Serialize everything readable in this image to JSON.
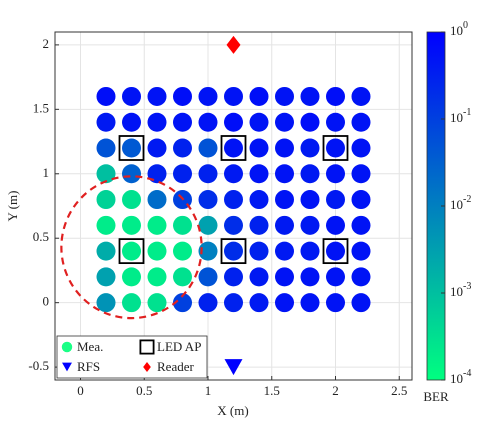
{
  "chart_data": {
    "type": "scatter",
    "xlabel": "X (m)",
    "ylabel": "Y (m)",
    "xlim": [
      -0.2,
      2.6
    ],
    "ylim": [
      -0.6,
      2.1
    ],
    "xticks": [
      0,
      0.5,
      1,
      1.5,
      2,
      2.5
    ],
    "yticks": [
      -0.5,
      0,
      0.5,
      1,
      1.5,
      2
    ],
    "grid": true,
    "colorbar": {
      "label": "BER",
      "log": true,
      "lim": [
        0.0001,
        1
      ],
      "colormap": [
        "#00ff80",
        "#0000ff"
      ],
      "ticks": [
        {
          "value": 1,
          "label": "10^0"
        },
        {
          "value": 0.1,
          "label": "10^-1"
        },
        {
          "value": 0.01,
          "label": "10^-2"
        },
        {
          "value": 0.001,
          "label": "10^-3"
        },
        {
          "value": 0.0001,
          "label": "10^-4"
        }
      ]
    },
    "legend": "lower left",
    "series": [
      {
        "name": "Mea.",
        "marker": "circle",
        "color": "#1aff86",
        "x": [
          0.2,
          0.4,
          0.6,
          0.8,
          1,
          1.2,
          1.4,
          1.6,
          1.8,
          2,
          2.2,
          0.2,
          0.4,
          0.6,
          0.8,
          1,
          1.2,
          1.4,
          1.6,
          1.8,
          2,
          2.2,
          0.2,
          0.4,
          0.6,
          0.8,
          1,
          1.2,
          1.4,
          1.6,
          1.8,
          2,
          2.2,
          0.2,
          0.4,
          0.6,
          0.8,
          1,
          1.2,
          1.4,
          1.6,
          1.8,
          2,
          2.2,
          0.2,
          0.4,
          0.6,
          0.8,
          1,
          1.2,
          1.4,
          1.6,
          1.8,
          2,
          2.2,
          0.2,
          0.4,
          0.6,
          0.8,
          1,
          1.2,
          1.4,
          1.6,
          1.8,
          2,
          2.2,
          0.2,
          0.4,
          0.6,
          0.8,
          1,
          1.2,
          1.4,
          1.6,
          1.8,
          2,
          2.2,
          0.2,
          0.4,
          0.6,
          0.8,
          1,
          1.2,
          1.4,
          1.6,
          1.8,
          2,
          2.2,
          0.2,
          0.4,
          0.6,
          0.8,
          1,
          1.2,
          1.4,
          1.6,
          1.8,
          2,
          2.2
        ],
        "y": [
          1.6,
          1.6,
          1.6,
          1.6,
          1.6,
          1.6,
          1.6,
          1.6,
          1.6,
          1.6,
          1.6,
          1.4,
          1.4,
          1.4,
          1.4,
          1.4,
          1.4,
          1.4,
          1.4,
          1.4,
          1.4,
          1.4,
          1.2,
          1.2,
          1.2,
          1.2,
          1.2,
          1.2,
          1.2,
          1.2,
          1.2,
          1.2,
          1.2,
          1,
          1,
          1,
          1,
          1,
          1,
          1,
          1,
          1,
          1,
          1,
          0.8,
          0.8,
          0.8,
          0.8,
          0.8,
          0.8,
          0.8,
          0.8,
          0.8,
          0.8,
          0.8,
          0.6,
          0.6,
          0.6,
          0.6,
          0.6,
          0.6,
          0.6,
          0.6,
          0.6,
          0.6,
          0.6,
          0.4,
          0.4,
          0.4,
          0.4,
          0.4,
          0.4,
          0.4,
          0.4,
          0.4,
          0.4,
          0.4,
          0.2,
          0.2,
          0.2,
          0.2,
          0.2,
          0.2,
          0.2,
          0.2,
          0.2,
          0.2,
          0.2,
          0,
          0,
          0,
          0,
          0,
          0,
          0,
          0,
          0,
          0,
          0
        ],
        "values": [
          0.6,
          0.5,
          0.5,
          0.6,
          0.5,
          0.5,
          0.6,
          0.5,
          0.5,
          0.6,
          0.5,
          0.4,
          0.5,
          0.5,
          0.5,
          0.5,
          0.6,
          0.5,
          0.5,
          0.6,
          0.5,
          0.5,
          0.05,
          0.04,
          0.4,
          0.3,
          0.05,
          0.5,
          0.5,
          0.5,
          0.4,
          0.5,
          0.5,
          0.001,
          0.03,
          0.3,
          0.3,
          0.3,
          0.4,
          0.5,
          0.5,
          0.4,
          0.5,
          0.5,
          0.0005,
          0.0003,
          0.02,
          0.1,
          0.2,
          0.3,
          0.4,
          0.5,
          0.5,
          0.4,
          0.5,
          0.0002,
          0.0002,
          0.0002,
          0.0003,
          0.003,
          0.2,
          0.3,
          0.4,
          0.4,
          0.5,
          0.5,
          0.002,
          0.0002,
          0.0002,
          0.0002,
          0.01,
          0.2,
          0.3,
          0.4,
          0.4,
          0.5,
          0.5,
          0.003,
          0.0002,
          0.0002,
          0.0003,
          0.05,
          0.3,
          0.4,
          0.5,
          0.5,
          0.5,
          0.5,
          0.005,
          0.0003,
          0.0003,
          0.1,
          0.3,
          0.3,
          0.4,
          0.5,
          0.5,
          0.5,
          0.5
        ]
      },
      {
        "name": "LED AP",
        "marker": "square",
        "color": "#000000",
        "x": [
          0.4,
          1.2,
          2,
          0.4,
          1.2,
          2
        ],
        "y": [
          1.2,
          1.2,
          1.2,
          0.4,
          0.4,
          0.4
        ]
      },
      {
        "name": "RFS",
        "marker": "triangle-down",
        "color": "#0000ff",
        "x": [
          1.2
        ],
        "y": [
          -0.5
        ]
      },
      {
        "name": "Reader",
        "marker": "diamond",
        "color": "#ff0000",
        "x": [
          1.2
        ],
        "y": [
          2
        ]
      }
    ],
    "circle": {
      "center": [
        0.4,
        0.43
      ],
      "radius": 0.55,
      "color": "#e02020"
    }
  }
}
